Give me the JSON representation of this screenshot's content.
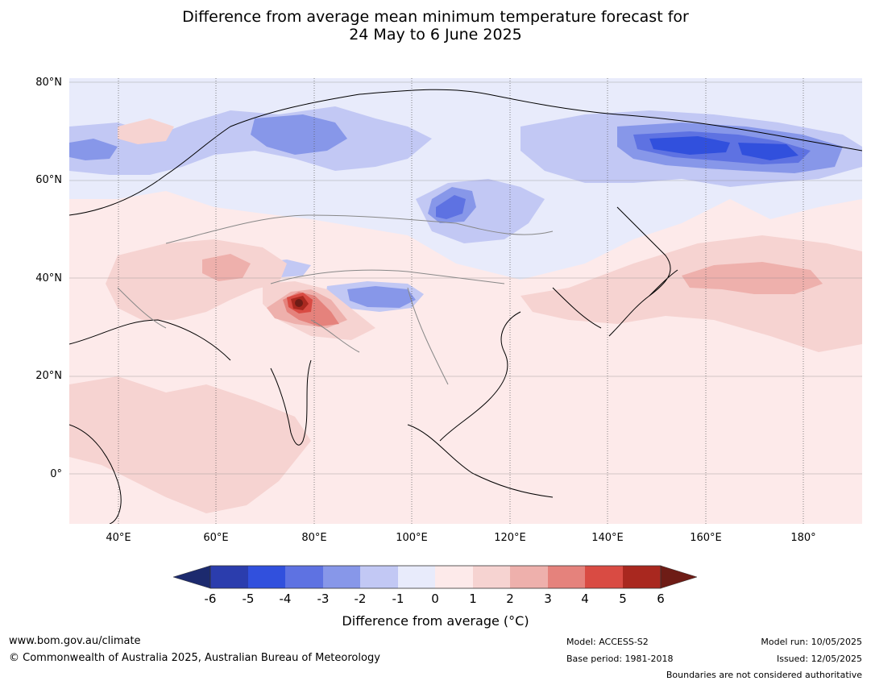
{
  "title": {
    "line1": "Difference from average mean minimum temperature forecast for",
    "line2": "24 May to 6 June 2025"
  },
  "map": {
    "lat_labels": [
      "80°N",
      "60°N",
      "40°N",
      "20°N",
      "0°"
    ],
    "lon_labels": [
      "40°E",
      "60°E",
      "80°E",
      "100°E",
      "120°E",
      "140°E",
      "160°E",
      "180°"
    ],
    "colors": {
      "neg6": "#1c2a6e",
      "neg5": "#2b3dad",
      "neg4": "#3150dd",
      "neg3": "#5e72e2",
      "neg2": "#8797e9",
      "neg1": "#c2c8f4",
      "neg0": "#e8ebfb",
      "pos0": "#fdeaea",
      "pos1": "#f6d3d1",
      "pos2": "#eeb0ac",
      "pos3": "#e5827c",
      "pos4": "#d94b43",
      "pos5": "#a9281f",
      "pos6": "#6e1c16"
    }
  },
  "colorbar": {
    "ticks": [
      "-6",
      "-5",
      "-4",
      "-3",
      "-2",
      "-1",
      "0",
      "1",
      "2",
      "3",
      "4",
      "5",
      "6"
    ],
    "label": "Difference from average (°C)"
  },
  "footer": {
    "website": "www.bom.gov.au/climate",
    "copyright": "© Commonwealth of Australia 2025, Australian Bureau of Meteorology",
    "model": "Model: ACCESS-S2",
    "base_period": "Base period: 1981-2018",
    "model_run": "Model run: 10/05/2025",
    "issued": "Issued: 12/05/2025",
    "disclaimer": "Boundaries are not considered authoritative"
  }
}
